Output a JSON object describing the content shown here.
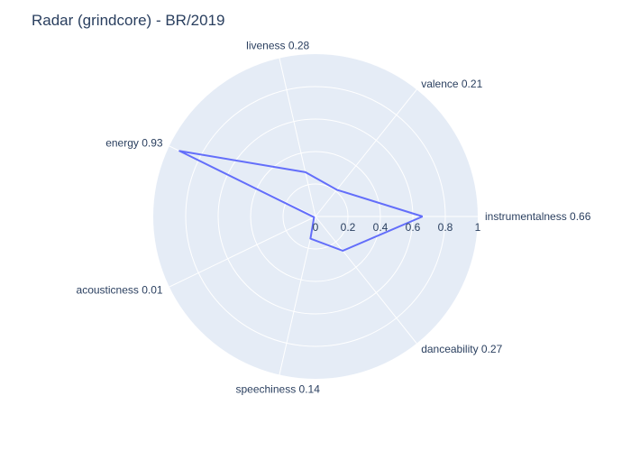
{
  "chart_data": {
    "type": "radar",
    "title": "Radar (grindcore) - BR/2019",
    "axes": [
      {
        "name": "instrumentalness",
        "label": "instrumentalness 0.66"
      },
      {
        "name": "valence",
        "label": "valence 0.21"
      },
      {
        "name": "liveness",
        "label": "liveness 0.28"
      },
      {
        "name": "energy",
        "label": "energy 0.93"
      },
      {
        "name": "acousticness",
        "label": "acousticness 0.01"
      },
      {
        "name": "speechiness",
        "label": "speechiness 0.14"
      },
      {
        "name": "danceability",
        "label": "danceability 0.27"
      }
    ],
    "series": [
      {
        "values": [
          0.66,
          0.21,
          0.28,
          0.93,
          0.01,
          0.14,
          0.27
        ],
        "color": "#636efa"
      }
    ],
    "radial_range": [
      0,
      1
    ],
    "radial_ticks": [
      "0",
      "0.2",
      "0.4",
      "0.6",
      "0.8",
      "1"
    ],
    "radial_tick_values": [
      0,
      0.2,
      0.4,
      0.6,
      0.8,
      1
    ],
    "grid": true,
    "background_color": "#e5ecf6",
    "grid_color": "#ffffff",
    "text_color": "#2a3f5f"
  }
}
